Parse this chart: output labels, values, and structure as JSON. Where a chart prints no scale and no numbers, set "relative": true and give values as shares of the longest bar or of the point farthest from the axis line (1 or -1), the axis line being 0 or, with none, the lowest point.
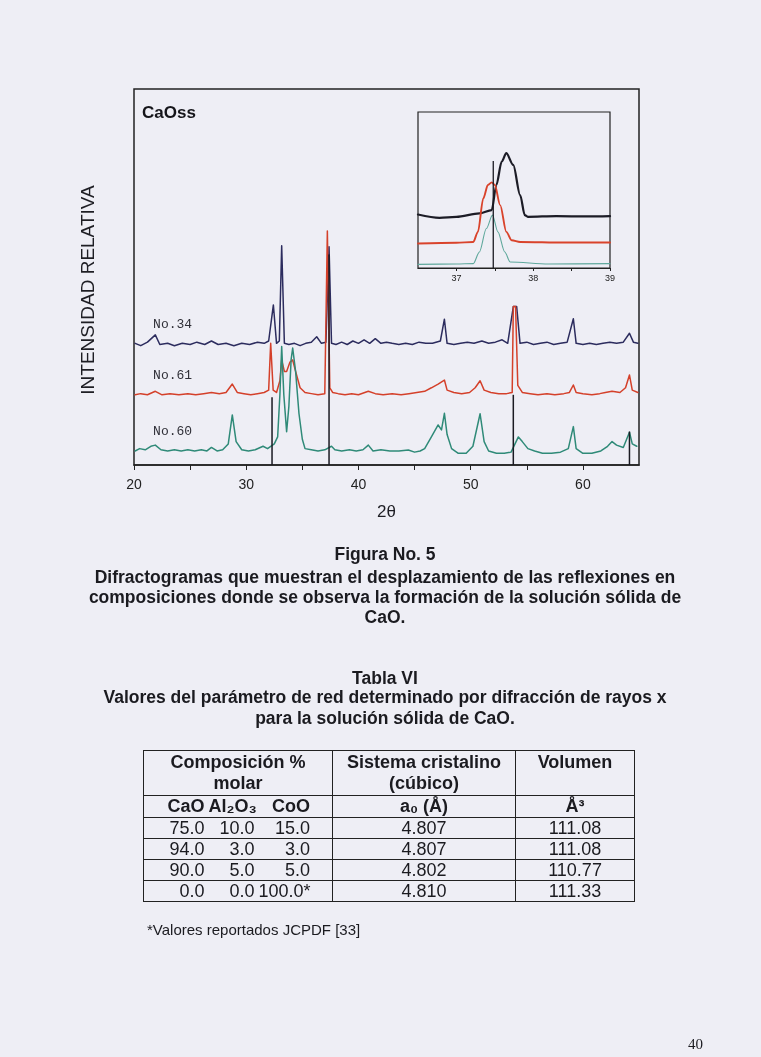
{
  "chart_data": [
    {
      "type": "line",
      "relative": true,
      "xlabel": "2θ",
      "ylabel": "INTENSIDAD RELATIVA",
      "annotations": [
        "CaOss",
        "Figura No. 5",
        "Difractogramas que muestran el desplazamiento de las reflexiones en composiciones donde se observa la formación de la solución sólida de CaO."
      ],
      "xlim": [
        20,
        65
      ],
      "xticks": [
        20,
        {
          "value": 25,
          "label": null
        },
        30,
        {
          "value": 35,
          "label": null
        },
        40,
        {
          "value": 45,
          "label": null
        },
        50,
        {
          "value": 55,
          "label": null
        },
        60
      ],
      "tick_labels": "x",
      "marker": "none",
      "series": [
        {
          "name": "No.34",
          "color": "#2c2c5e",
          "x": [
            20.1,
            20.6,
            21.2,
            21.9,
            22.3,
            23.0,
            23.6,
            24.3,
            25.0,
            25.6,
            26.3,
            26.9,
            27.5,
            28.2,
            28.9,
            29.6,
            30.3,
            31.0,
            31.6,
            32.0,
            32.42,
            32.7,
            32.95,
            33.16,
            33.4,
            33.8,
            34.3,
            34.8,
            35.3,
            35.8,
            36.28,
            36.7,
            37.1,
            37.38,
            37.6,
            38.0,
            38.5,
            39.0,
            39.5,
            40.0,
            40.5,
            41.0,
            41.5,
            42.0,
            42.5,
            43.0,
            43.6,
            44.2,
            44.8,
            45.4,
            46.0,
            46.6,
            47.3,
            47.66,
            47.9,
            48.5,
            49.1,
            49.7,
            50.3,
            51.0,
            51.6,
            52.2,
            52.8,
            53.3,
            53.8,
            54.1,
            54.4,
            55.0,
            55.6,
            56.2,
            56.8,
            57.4,
            58.0,
            58.6,
            59.15,
            59.4,
            60.0,
            60.6,
            61.2,
            61.8,
            62.4,
            63.0,
            63.6,
            64.15,
            64.5,
            64.9
          ],
          "values": [
            0.52,
            0.51,
            0.525,
            0.556,
            0.515,
            0.52,
            0.51,
            0.52,
            0.515,
            0.525,
            0.515,
            0.53,
            0.515,
            0.52,
            0.51,
            0.52,
            0.515,
            0.525,
            0.52,
            0.53,
            0.684,
            0.52,
            0.53,
            0.937,
            0.52,
            0.515,
            0.52,
            0.51,
            0.52,
            0.525,
            0.548,
            0.52,
            0.525,
            0.933,
            0.52,
            0.515,
            0.525,
            0.515,
            0.53,
            0.52,
            0.535,
            0.52,
            0.54,
            0.52,
            0.525,
            0.52,
            0.515,
            0.52,
            0.515,
            0.525,
            0.52,
            0.52,
            0.53,
            0.623,
            0.52,
            0.515,
            0.52,
            0.525,
            0.52,
            0.53,
            0.52,
            0.525,
            0.535,
            0.52,
            0.677,
            0.677,
            0.52,
            0.525,
            0.515,
            0.52,
            0.525,
            0.515,
            0.52,
            0.525,
            0.625,
            0.52,
            0.515,
            0.52,
            0.515,
            0.52,
            0.525,
            0.52,
            0.525,
            0.563,
            0.525,
            0.52
          ]
        },
        {
          "name": "No.61",
          "color": "#d4402a",
          "x": [
            20.1,
            20.6,
            21.2,
            21.9,
            22.5,
            23.2,
            24.0,
            24.8,
            25.5,
            26.2,
            26.9,
            27.6,
            28.2,
            28.76,
            29.2,
            29.8,
            30.4,
            31.0,
            31.6,
            32.0,
            32.18,
            32.4,
            32.7,
            33.0,
            33.16,
            33.4,
            33.6,
            33.9,
            34.14,
            34.4,
            34.8,
            35.24,
            35.8,
            36.4,
            37.0,
            37.23,
            37.45,
            37.7,
            38.2,
            38.8,
            39.4,
            40.0,
            40.88,
            41.5,
            42.2,
            43.0,
            43.8,
            44.5,
            45.2,
            45.9,
            46.5,
            47.1,
            47.66,
            47.9,
            48.5,
            49.2,
            49.9,
            50.4,
            50.84,
            51.2,
            51.8,
            52.5,
            53.2,
            53.7,
            53.8,
            54.0,
            54.2,
            54.6,
            55.3,
            56.0,
            56.8,
            57.5,
            58.3,
            58.8,
            59.15,
            59.4,
            60.0,
            60.8,
            61.5,
            62.0,
            62.6,
            63.3,
            63.8,
            64.15,
            64.4,
            64.9
          ],
          "values": [
            0.3,
            0.305,
            0.3,
            0.315,
            0.3,
            0.305,
            0.3,
            0.305,
            0.3,
            0.305,
            0.31,
            0.305,
            0.31,
            0.346,
            0.31,
            0.305,
            0.3,
            0.305,
            0.31,
            0.32,
            0.52,
            0.32,
            0.31,
            0.36,
            0.449,
            0.4,
            0.4,
            0.44,
            0.449,
            0.4,
            0.33,
            0.31,
            0.305,
            0.3,
            0.305,
            1.0,
            0.33,
            0.31,
            0.305,
            0.3,
            0.305,
            0.3,
            0.315,
            0.305,
            0.3,
            0.305,
            0.3,
            0.305,
            0.31,
            0.315,
            0.33,
            0.346,
            0.363,
            0.32,
            0.31,
            0.305,
            0.31,
            0.33,
            0.36,
            0.32,
            0.31,
            0.305,
            0.305,
            0.31,
            0.677,
            0.677,
            0.34,
            0.31,
            0.305,
            0.3,
            0.305,
            0.3,
            0.305,
            0.31,
            0.342,
            0.31,
            0.305,
            0.3,
            0.305,
            0.31,
            0.315,
            0.31,
            0.33,
            0.385,
            0.32,
            0.31
          ]
        },
        {
          "name": "No.60",
          "color": "#2f8a78",
          "x": [
            20.1,
            20.5,
            21.0,
            21.5,
            21.9,
            22.4,
            23.0,
            23.6,
            24.2,
            24.8,
            25.4,
            26.0,
            26.5,
            26.9,
            27.4,
            27.9,
            28.4,
            28.76,
            29.1,
            29.6,
            30.2,
            30.8,
            31.5,
            31.9,
            32.5,
            32.8,
            33.0,
            33.16,
            33.35,
            33.6,
            33.8,
            34.0,
            34.14,
            34.4,
            34.7,
            35.0,
            35.24,
            35.8,
            36.4,
            37.0,
            37.6,
            37.9,
            38.5,
            39.2,
            39.8,
            40.4,
            40.88,
            41.3,
            42.0,
            42.8,
            43.6,
            44.45,
            45.0,
            45.5,
            45.9,
            46.5,
            47.1,
            47.4,
            47.66,
            47.9,
            48.3,
            48.9,
            49.6,
            50.2,
            50.84,
            51.2,
            51.6,
            52.3,
            53.0,
            53.6,
            54.25,
            54.6,
            55.1,
            55.7,
            56.4,
            57.2,
            58.0,
            58.7,
            59.15,
            59.4,
            60.0,
            60.8,
            61.6,
            62.2,
            62.6,
            63.0,
            63.6,
            64.15,
            64.4,
            64.8
          ],
          "values": [
            0.06,
            0.07,
            0.065,
            0.08,
            0.085,
            0.065,
            0.06,
            0.065,
            0.06,
            0.065,
            0.06,
            0.065,
            0.06,
            0.075,
            0.06,
            0.065,
            0.09,
            0.214,
            0.1,
            0.065,
            0.06,
            0.065,
            0.08,
            0.07,
            0.09,
            0.12,
            0.3,
            0.506,
            0.3,
            0.142,
            0.25,
            0.45,
            0.5,
            0.4,
            0.22,
            0.11,
            0.07,
            0.065,
            0.06,
            0.065,
            0.08,
            0.065,
            0.06,
            0.065,
            0.06,
            0.065,
            0.085,
            0.06,
            0.065,
            0.06,
            0.06,
            0.064,
            0.055,
            0.06,
            0.07,
            0.12,
            0.171,
            0.15,
            0.221,
            0.13,
            0.07,
            0.05,
            0.05,
            0.08,
            0.219,
            0.1,
            0.06,
            0.05,
            0.05,
            0.055,
            0.12,
            0.1,
            0.07,
            0.06,
            0.05,
            0.05,
            0.055,
            0.07,
            0.164,
            0.07,
            0.05,
            0.05,
            0.06,
            0.08,
            0.1,
            0.085,
            0.075,
            0.14,
            0.09,
            0.08
          ]
        },
        {
          "type": "bar",
          "color": "#1a1a22",
          "x": [
            32.3,
            37.38,
            53.8,
            64.15
          ],
          "values": [
            0.29,
            0.9,
            0.3,
            0.143
          ]
        }
      ]
    },
    {
      "type": "line",
      "relative": true,
      "xlim": [
        36.5,
        39
      ],
      "xticks": [
        37,
        {
          "value": 37.5,
          "label": null
        },
        38,
        {
          "value": 38.5,
          "label": null
        },
        39
      ],
      "tick_labels": "x",
      "marker": "none",
      "series": [
        {
          "color": "#1c1c26",
          "x": [
            36.5,
            36.78,
            37.0,
            37.3,
            37.46,
            37.52,
            37.59,
            37.65,
            37.74,
            37.83,
            37.89,
            37.93,
            38.3,
            38.7,
            39.0
          ],
          "values": [
            0.466,
            0.437,
            0.445,
            0.475,
            0.504,
            0.723,
            0.927,
            1.0,
            0.898,
            0.636,
            0.461,
            0.446,
            0.452,
            0.449,
            0.452
          ]
        },
        {
          "color": "#d9432b",
          "x": [
            36.5,
            37.0,
            37.22,
            37.28,
            37.35,
            37.41,
            37.46,
            37.5,
            37.57,
            37.65,
            37.72,
            37.83,
            38.4,
            39.0
          ],
          "values": [
            0.213,
            0.22,
            0.227,
            0.315,
            0.606,
            0.723,
            0.746,
            0.723,
            0.548,
            0.315,
            0.242,
            0.227,
            0.222,
            0.222
          ]
        },
        {
          "color": "#5fa89c",
          "x": [
            36.5,
            37.0,
            37.22,
            37.3,
            37.39,
            37.47,
            37.54,
            37.63,
            37.7,
            38.2,
            39.0
          ],
          "values": [
            0.032,
            0.035,
            0.038,
            0.14,
            0.344,
            0.461,
            0.315,
            0.14,
            0.052,
            0.035,
            0.038
          ]
        },
        {
          "type": "bar",
          "color": "#1a1a22",
          "x": [
            37.48
          ],
          "values": [
            0.933
          ]
        }
      ]
    },
    {
      "type": "other",
      "title": "Tabla VI",
      "subtitle": "Valores del parámetro de red determinado por difracción de rayos x para la solución sólida de CaO.",
      "annotations": [
        "Composición % molar",
        "Sistema cristalino (cúbico)",
        "Volumen",
        "CaO",
        "Al₂O₃",
        "CoO",
        "a₀ (Å)",
        "Å³",
        "75.0",
        "10.0",
        "15.0",
        "4.807",
        "111.08",
        "94.0",
        "3.0",
        "3.0",
        "4.807",
        "111.08",
        "90.0",
        "5.0",
        "5.0",
        "4.802",
        "110.77",
        "0.0",
        "0.0",
        "100.0*",
        "4.810",
        "111.33",
        "*Valores reportados JCPDF [33]",
        "40"
      ]
    }
  ]
}
